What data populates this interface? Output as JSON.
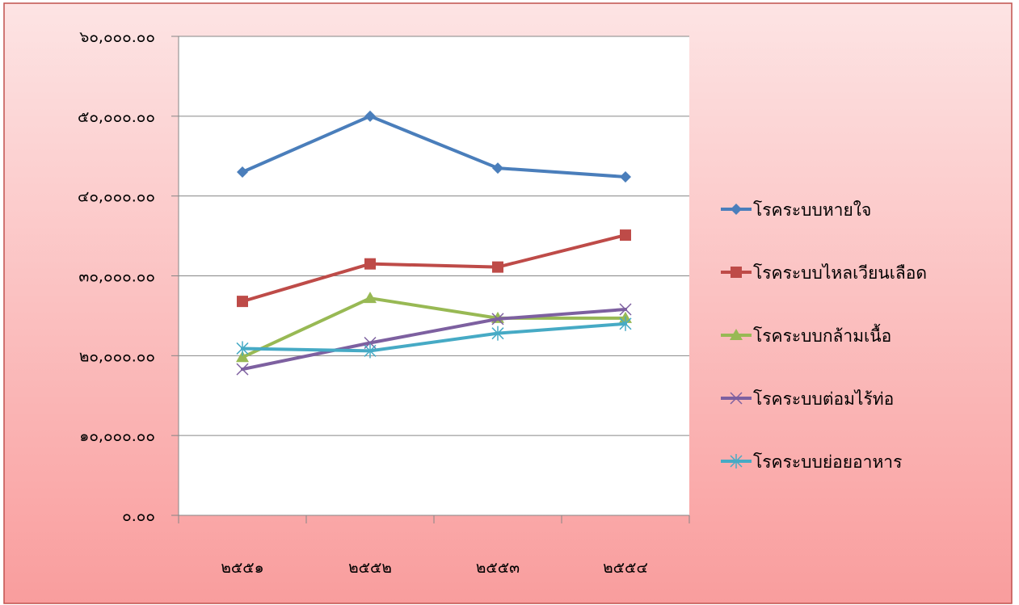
{
  "chart_data": {
    "type": "line",
    "title": "",
    "xlabel": "",
    "ylabel": "",
    "categories": [
      "๒๕๕๑",
      "๒๕๕๒",
      "๒๕๕๓",
      "๒๕๕๔"
    ],
    "ylim": [
      0,
      60000
    ],
    "y_ticks": [
      {
        "value": 0,
        "label": "๐.๐๐"
      },
      {
        "value": 10000,
        "label": "๑๐,๐๐๐.๐๐"
      },
      {
        "value": 20000,
        "label": "๒๐,๐๐๐.๐๐"
      },
      {
        "value": 30000,
        "label": "๓๐,๐๐๐.๐๐"
      },
      {
        "value": 40000,
        "label": "๔๐,๐๐๐.๐๐"
      },
      {
        "value": 50000,
        "label": "๕๐,๐๐๐.๐๐"
      },
      {
        "value": 60000,
        "label": "๖๐,๐๐๐.๐๐"
      }
    ],
    "grid": true,
    "legend_position": "right",
    "series": [
      {
        "name": "โรคระบบหายใจ",
        "values": [
          43000,
          50000,
          43500,
          42400
        ],
        "color": "#4a7ebb",
        "marker": "diamond"
      },
      {
        "name": "โรคระบบไหลเวียนเลือด",
        "values": [
          26800,
          31500,
          31100,
          35100
        ],
        "color": "#be4b48",
        "marker": "square"
      },
      {
        "name": "โรคระบบกล้ามเนื้อ",
        "values": [
          19800,
          27200,
          24700,
          24700
        ],
        "color": "#98b954",
        "marker": "triangle"
      },
      {
        "name": "โรคระบบต่อมไร้ท่อ",
        "values": [
          18300,
          21600,
          24600,
          25800
        ],
        "color": "#7d60a0",
        "marker": "x"
      },
      {
        "name": "โรคระบบย่อยอาหาร",
        "values": [
          20900,
          20600,
          22800,
          24000
        ],
        "color": "#46aac5",
        "marker": "asterisk"
      }
    ]
  }
}
